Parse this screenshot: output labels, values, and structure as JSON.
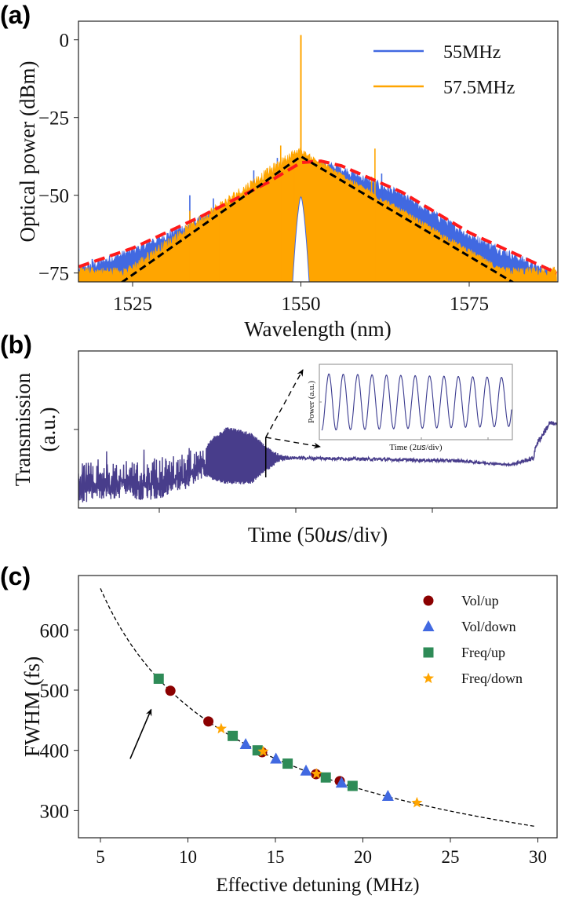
{
  "panels": {
    "a": "(a)",
    "b": "(b)",
    "c": "(c)"
  },
  "chart_data": [
    {
      "type": "line",
      "id": "a",
      "xlabel": "Wavelength (nm)",
      "ylabel": "Optical power (dBm)",
      "xlim": [
        1517,
        1588
      ],
      "ylim": [
        -77.8,
        6
      ],
      "xticks": [
        1525,
        1550,
        1575
      ],
      "xtick_labels": [
        "1525",
        "1550",
        "1575"
      ],
      "yticks": [
        0,
        -25,
        -50,
        -75
      ],
      "ytick_labels": [
        "0",
        "−25",
        "−50",
        "−75"
      ],
      "legend": {
        "placement": "top-right",
        "entries": [
          "55MHz",
          "57.5MHz"
        ]
      },
      "colors": {
        "55MHz": "#4169e1",
        "57.5MHz": "#ffa500",
        "fit_red": "#ff1a1a",
        "fit_black": "#000000"
      },
      "series": [
        {
          "name": "55MHz",
          "envelope": [
            [
              1517,
              -73
            ],
            [
              1525,
              -67
            ],
            [
              1535,
              -57
            ],
            [
              1545,
              -46
            ],
            [
              1550,
              -39.5
            ],
            [
              1553,
              -39
            ],
            [
              1556,
              -40.5
            ],
            [
              1565,
              -49
            ],
            [
              1575,
              -62
            ],
            [
              1588,
              -75
            ]
          ],
          "spikes": [
            [
              1533.5,
              -50
            ],
            [
              1537,
              -51
            ],
            [
              1540,
              -50
            ],
            [
              1543,
              -42
            ],
            [
              1546.5,
              -38
            ],
            [
              1554,
              -41
            ],
            [
              1562,
              -43
            ],
            [
              1575,
              -67
            ],
            [
              1577,
              -66
            ],
            [
              1583.5,
              -70
            ],
            [
              1519,
              -70.5
            ],
            [
              1528,
              -64
            ]
          ]
        },
        {
          "name": "57.5MHz",
          "spikes": [
            [
              1550,
              1.5
            ],
            [
              1547,
              -34
            ],
            [
              1549,
              -36
            ],
            [
              1549.4,
              -36.5
            ],
            [
              1561,
              -35
            ],
            [
              1560.5,
              -44
            ],
            [
              1556,
              -45
            ],
            [
              1533.5,
              -55
            ],
            [
              1543,
              -46
            ],
            [
              1538,
              -56
            ],
            [
              1575,
              -70
            ]
          ],
          "notch": {
            "center": 1550,
            "top": -50.5,
            "halfwidth": 1.3
          }
        },
        {
          "name": "fit_red",
          "points": [
            [
              1517,
              -73
            ],
            [
              1525,
              -67
            ],
            [
              1535,
              -57
            ],
            [
              1545,
              -46
            ],
            [
              1550,
              -39.5
            ],
            [
              1553,
              -39
            ],
            [
              1556,
              -40.5
            ],
            [
              1565,
              -49
            ],
            [
              1575,
              -62
            ],
            [
              1588,
              -75
            ]
          ]
        },
        {
          "name": "fit_black",
          "points": [
            [
              1523.4,
              -78
            ],
            [
              1550,
              -37.5
            ],
            [
              1581.5,
              -78
            ]
          ]
        }
      ]
    },
    {
      "type": "line",
      "id": "b",
      "xlabel_prefix": "Time (50",
      "xlabel_unit": "us",
      "xlabel_suffix": "/div)",
      "ylabel_lines": [
        "Transmission",
        "(a.u.)"
      ],
      "xlim": [
        20.4,
        195.7
      ],
      "ylim": [
        0,
        1
      ],
      "xticks": [
        50,
        100,
        150
      ],
      "yticks": [
        0.5
      ],
      "color": "#483d8b",
      "envelope": [
        [
          20.4,
          0.03,
          0.3
        ],
        [
          37.6,
          0.06,
          0.28
        ],
        [
          49,
          0.04,
          0.33
        ],
        [
          60.6,
          0.12,
          0.35
        ],
        [
          67,
          0.2,
          0.38
        ],
        [
          68.7,
          0.18,
          0.44
        ],
        [
          75,
          0.15,
          0.52
        ],
        [
          83.6,
          0.15,
          0.48
        ],
        [
          89,
          0.23,
          0.4
        ],
        [
          93.6,
          0.29,
          0.35
        ],
        [
          97.9,
          0.31,
          0.33
        ],
        [
          130,
          0.3,
          0.32
        ],
        [
          160,
          0.29,
          0.31
        ],
        [
          178.4,
          0.27,
          0.28
        ],
        [
          187,
          0.3,
          0.33
        ],
        [
          188,
          0.38,
          0.42
        ],
        [
          193,
          0.52,
          0.56
        ],
        [
          195.7,
          0.53,
          0.54
        ]
      ],
      "marker_time": 89,
      "inset": {
        "xlabel_prefix": "Time (2",
        "xlabel_unit": "us",
        "xlabel_suffix": "/div)",
        "ylabel": "Power (a.u.)",
        "periods": 13.2,
        "amplitude_start": 0.45,
        "amplitude_end": 0.39
      }
    },
    {
      "type": "scatter",
      "id": "c",
      "xlabel": "Effective detuning (MHz)",
      "ylabel": "FWHM (fs)",
      "xlim": [
        3.74,
        31.1
      ],
      "ylim": [
        254,
        690
      ],
      "xticks": [
        5,
        10,
        15,
        20,
        25,
        30
      ],
      "xtick_labels": [
        "5",
        "10",
        "15",
        "20",
        "25",
        "30"
      ],
      "yticks": [
        300,
        400,
        500,
        600
      ],
      "ytick_labels": [
        "300",
        "400",
        "500",
        "600"
      ],
      "legend": {
        "placement": "top-right"
      },
      "fit": {
        "type": "power",
        "a": 1496,
        "b": 0.5,
        "x_range": [
          5,
          29.9
        ]
      },
      "series": [
        {
          "name": "Vol/up",
          "marker": "circle",
          "color": "#8b0000",
          "x": [
            9.0,
            11.17,
            14.24,
            17.32,
            18.68
          ],
          "y": [
            499,
            448,
            397,
            360.5,
            349
          ]
        },
        {
          "name": "Vol/down",
          "marker": "triangle",
          "color": "#4169e1",
          "x": [
            13.3,
            15.03,
            16.75,
            18.78,
            21.43
          ],
          "y": [
            410,
            386,
            366,
            346,
            324
          ]
        },
        {
          "name": "Freq/up",
          "marker": "square",
          "color": "#2e8b57",
          "x": [
            8.33,
            12.56,
            13.98,
            15.7,
            17.88,
            19.41
          ],
          "y": [
            519,
            424,
            400,
            378,
            355,
            341
          ]
        },
        {
          "name": "Freq/down",
          "marker": "star",
          "color": "#ffa500",
          "x": [
            11.9,
            14.3,
            17.35,
            23.09
          ],
          "y": [
            436,
            398,
            361,
            313
          ]
        }
      ],
      "annotation_arrow": {
        "from": [
          6.7,
          386
        ],
        "to": [
          7.9,
          468
        ]
      }
    }
  ]
}
